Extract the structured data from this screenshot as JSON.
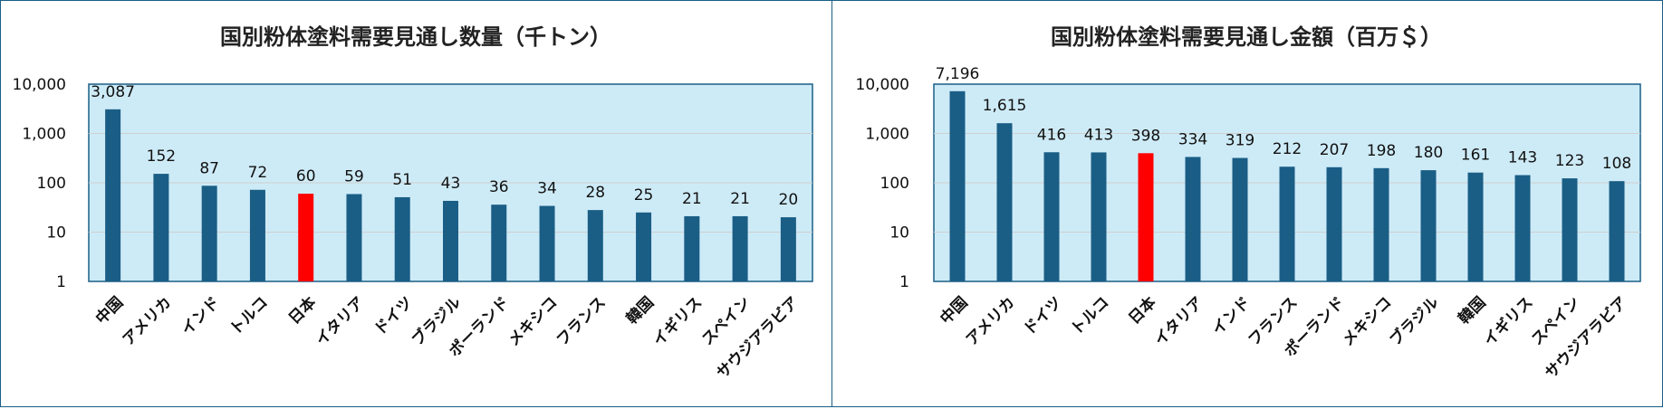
{
  "colors": {
    "plot_bg": "#cdebf7",
    "plot_border": "#1a5e86",
    "bar": "#1a5e86",
    "highlight": "#ff0000",
    "grid": "#cfcfcf"
  },
  "chart_data": [
    {
      "type": "bar",
      "title": "国別粉体塗料需要見通し数量（千トン）",
      "yscale": "log",
      "ylim": [
        1,
        10000
      ],
      "yticks": [
        "1",
        "10",
        "100",
        "1,000",
        "10,000"
      ],
      "grid": true,
      "highlight_category": "日本",
      "categories": [
        "中国",
        "アメリカ",
        "インド",
        "トルコ",
        "日本",
        "イタリア",
        "ドイツ",
        "ブラジル",
        "ポーランド",
        "メキシコ",
        "フランス",
        "韓国",
        "イギリス",
        "スペイン",
        "サウジアラビア"
      ],
      "values": [
        3087,
        152,
        87,
        72,
        60,
        59,
        51,
        43,
        36,
        34,
        28,
        25,
        21,
        21,
        20
      ],
      "labels": [
        "3,087",
        "152",
        "87",
        "72",
        "60",
        "59",
        "51",
        "43",
        "36",
        "34",
        "28",
        "25",
        "21",
        "21",
        "20"
      ]
    },
    {
      "type": "bar",
      "title": "国別粉体塗料需要見通し金額（百万＄）",
      "yscale": "log",
      "ylim": [
        1,
        10000
      ],
      "yticks": [
        "1",
        "10",
        "100",
        "1,000",
        "10,000"
      ],
      "grid": true,
      "highlight_category": "日本",
      "categories": [
        "中国",
        "アメリカ",
        "ドイツ",
        "トルコ",
        "日本",
        "イタリア",
        "インド",
        "フランス",
        "ポーランド",
        "メキシコ",
        "ブラジル",
        "韓国",
        "イギリス",
        "スペイン",
        "サウジアラビア"
      ],
      "values": [
        7196,
        1615,
        416,
        413,
        398,
        334,
        319,
        212,
        207,
        198,
        180,
        161,
        143,
        123,
        108
      ],
      "labels": [
        "7,196",
        "1,615",
        "416",
        "413",
        "398",
        "334",
        "319",
        "212",
        "207",
        "198",
        "180",
        "161",
        "143",
        "123",
        "108"
      ]
    }
  ]
}
